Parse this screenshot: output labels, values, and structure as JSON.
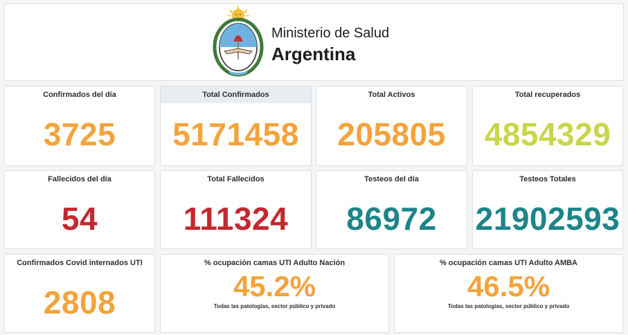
{
  "header": {
    "line1": "Ministerio de Salud",
    "line2": "Argentina"
  },
  "colors": {
    "orange": "#f4a33b",
    "green_yellow": "#c9d64a",
    "red": "#c4282f",
    "teal": "#1d8489"
  },
  "stats": [
    {
      "title": "Confirmados del día",
      "value": "3725",
      "color": "#f4a33b"
    },
    {
      "title": "Total Confirmados",
      "value": "5171458",
      "color": "#f4a33b"
    },
    {
      "title": "Total Activos",
      "value": "205805",
      "color": "#f4a33b"
    },
    {
      "title": "Total recuperados",
      "value": "4854329",
      "color": "#c9d64a"
    },
    {
      "title": "Fallecidos del día",
      "value": "54",
      "color": "#c4282f"
    },
    {
      "title": "Total Fallecidos",
      "value": "111324",
      "color": "#c4282f"
    },
    {
      "title": "Testeos del día",
      "value": "86972",
      "color": "#1d8489"
    },
    {
      "title": "Testeos Totales",
      "value": "21902593",
      "color": "#1d8489"
    },
    {
      "title": "Confirmados Covid internados UTI",
      "value": "2808",
      "color": "#f4a33b"
    }
  ],
  "occupancy": [
    {
      "title": "% ocupación camas UTI Adulto Nación",
      "value": "45.2%",
      "subtitle": "Todas las patologías, sector público y privado",
      "color": "#f4a33b"
    },
    {
      "title": "% ocupación camas UTI Adulto AMBA",
      "value": "46.5%",
      "subtitle": "Todas las patologías, sector público y privado",
      "color": "#f4a33b"
    }
  ]
}
